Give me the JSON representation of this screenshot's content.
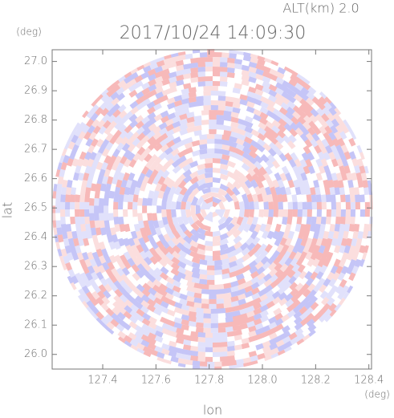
{
  "chart_data": {
    "type": "ppi",
    "title": "2017/10/24 14:09:30",
    "subtitle": "ALT(km) 2.0",
    "x_label": "lon",
    "y_label": "lat",
    "x_unit": "(deg)",
    "y_unit": "(deg)",
    "xlim": [
      127.21,
      128.41
    ],
    "ylim": [
      25.95,
      27.04
    ],
    "xticks": [
      127.4,
      127.6,
      127.8,
      {
        "value": 128,
        "label": "128.0"
      },
      128.2,
      128.4
    ],
    "yticks": [
      {
        "value": 26,
        "label": "26.0"
      },
      26.1,
      26.2,
      26.3,
      26.4,
      26.5,
      26.6,
      26.7,
      26.8,
      26.9,
      {
        "value": 27,
        "label": "27.0"
      }
    ]
  }
}
